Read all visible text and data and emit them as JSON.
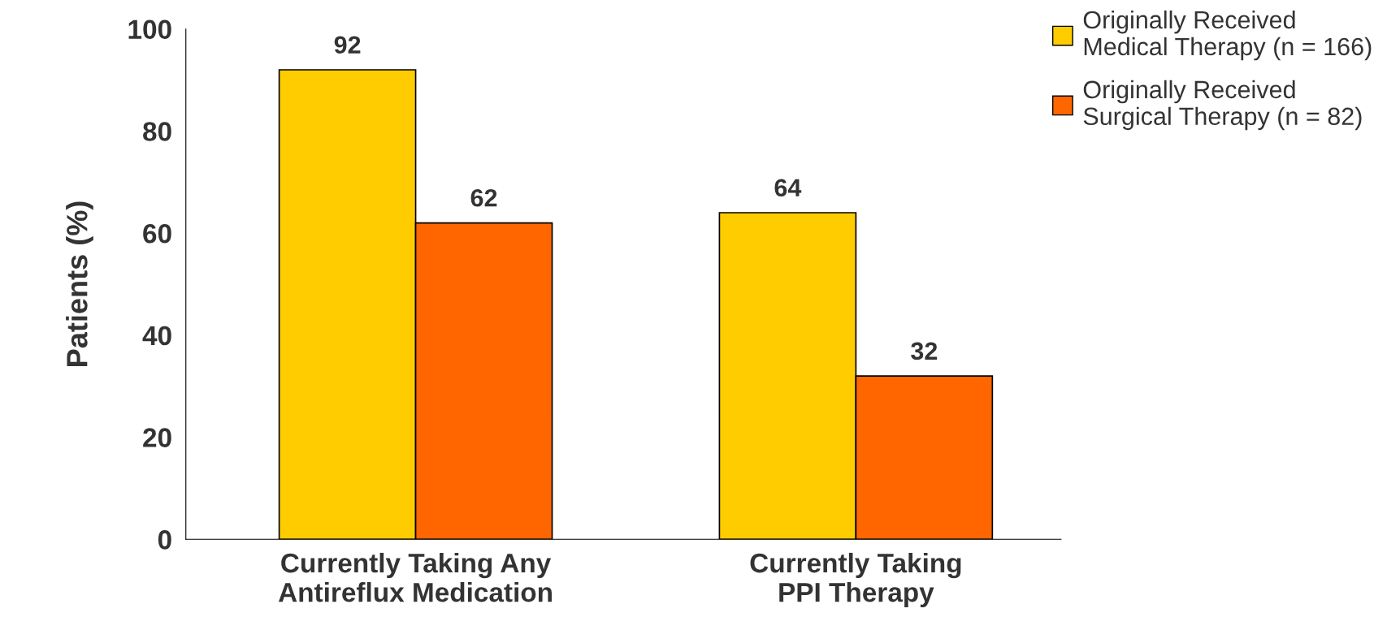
{
  "chart_data": {
    "type": "bar",
    "ylabel": "Patients (%)",
    "categories": [
      "Currently Taking Any\nAntireflux Medication",
      "Currently Taking\nPPI Therapy"
    ],
    "series": [
      {
        "name": "Originally Received\nMedical Therapy (n = 166)",
        "color": "#ffcc00",
        "values": [
          92,
          64
        ]
      },
      {
        "name": "Originally Received\nSurgical Therapy (n = 82)",
        "color": "#ff6600",
        "values": [
          62,
          32
        ]
      }
    ],
    "ylim": [
      0,
      100
    ],
    "yticks": [
      0,
      20,
      40,
      60,
      80,
      100
    ],
    "grid": false,
    "legend": "top right",
    "data_labels": true
  }
}
